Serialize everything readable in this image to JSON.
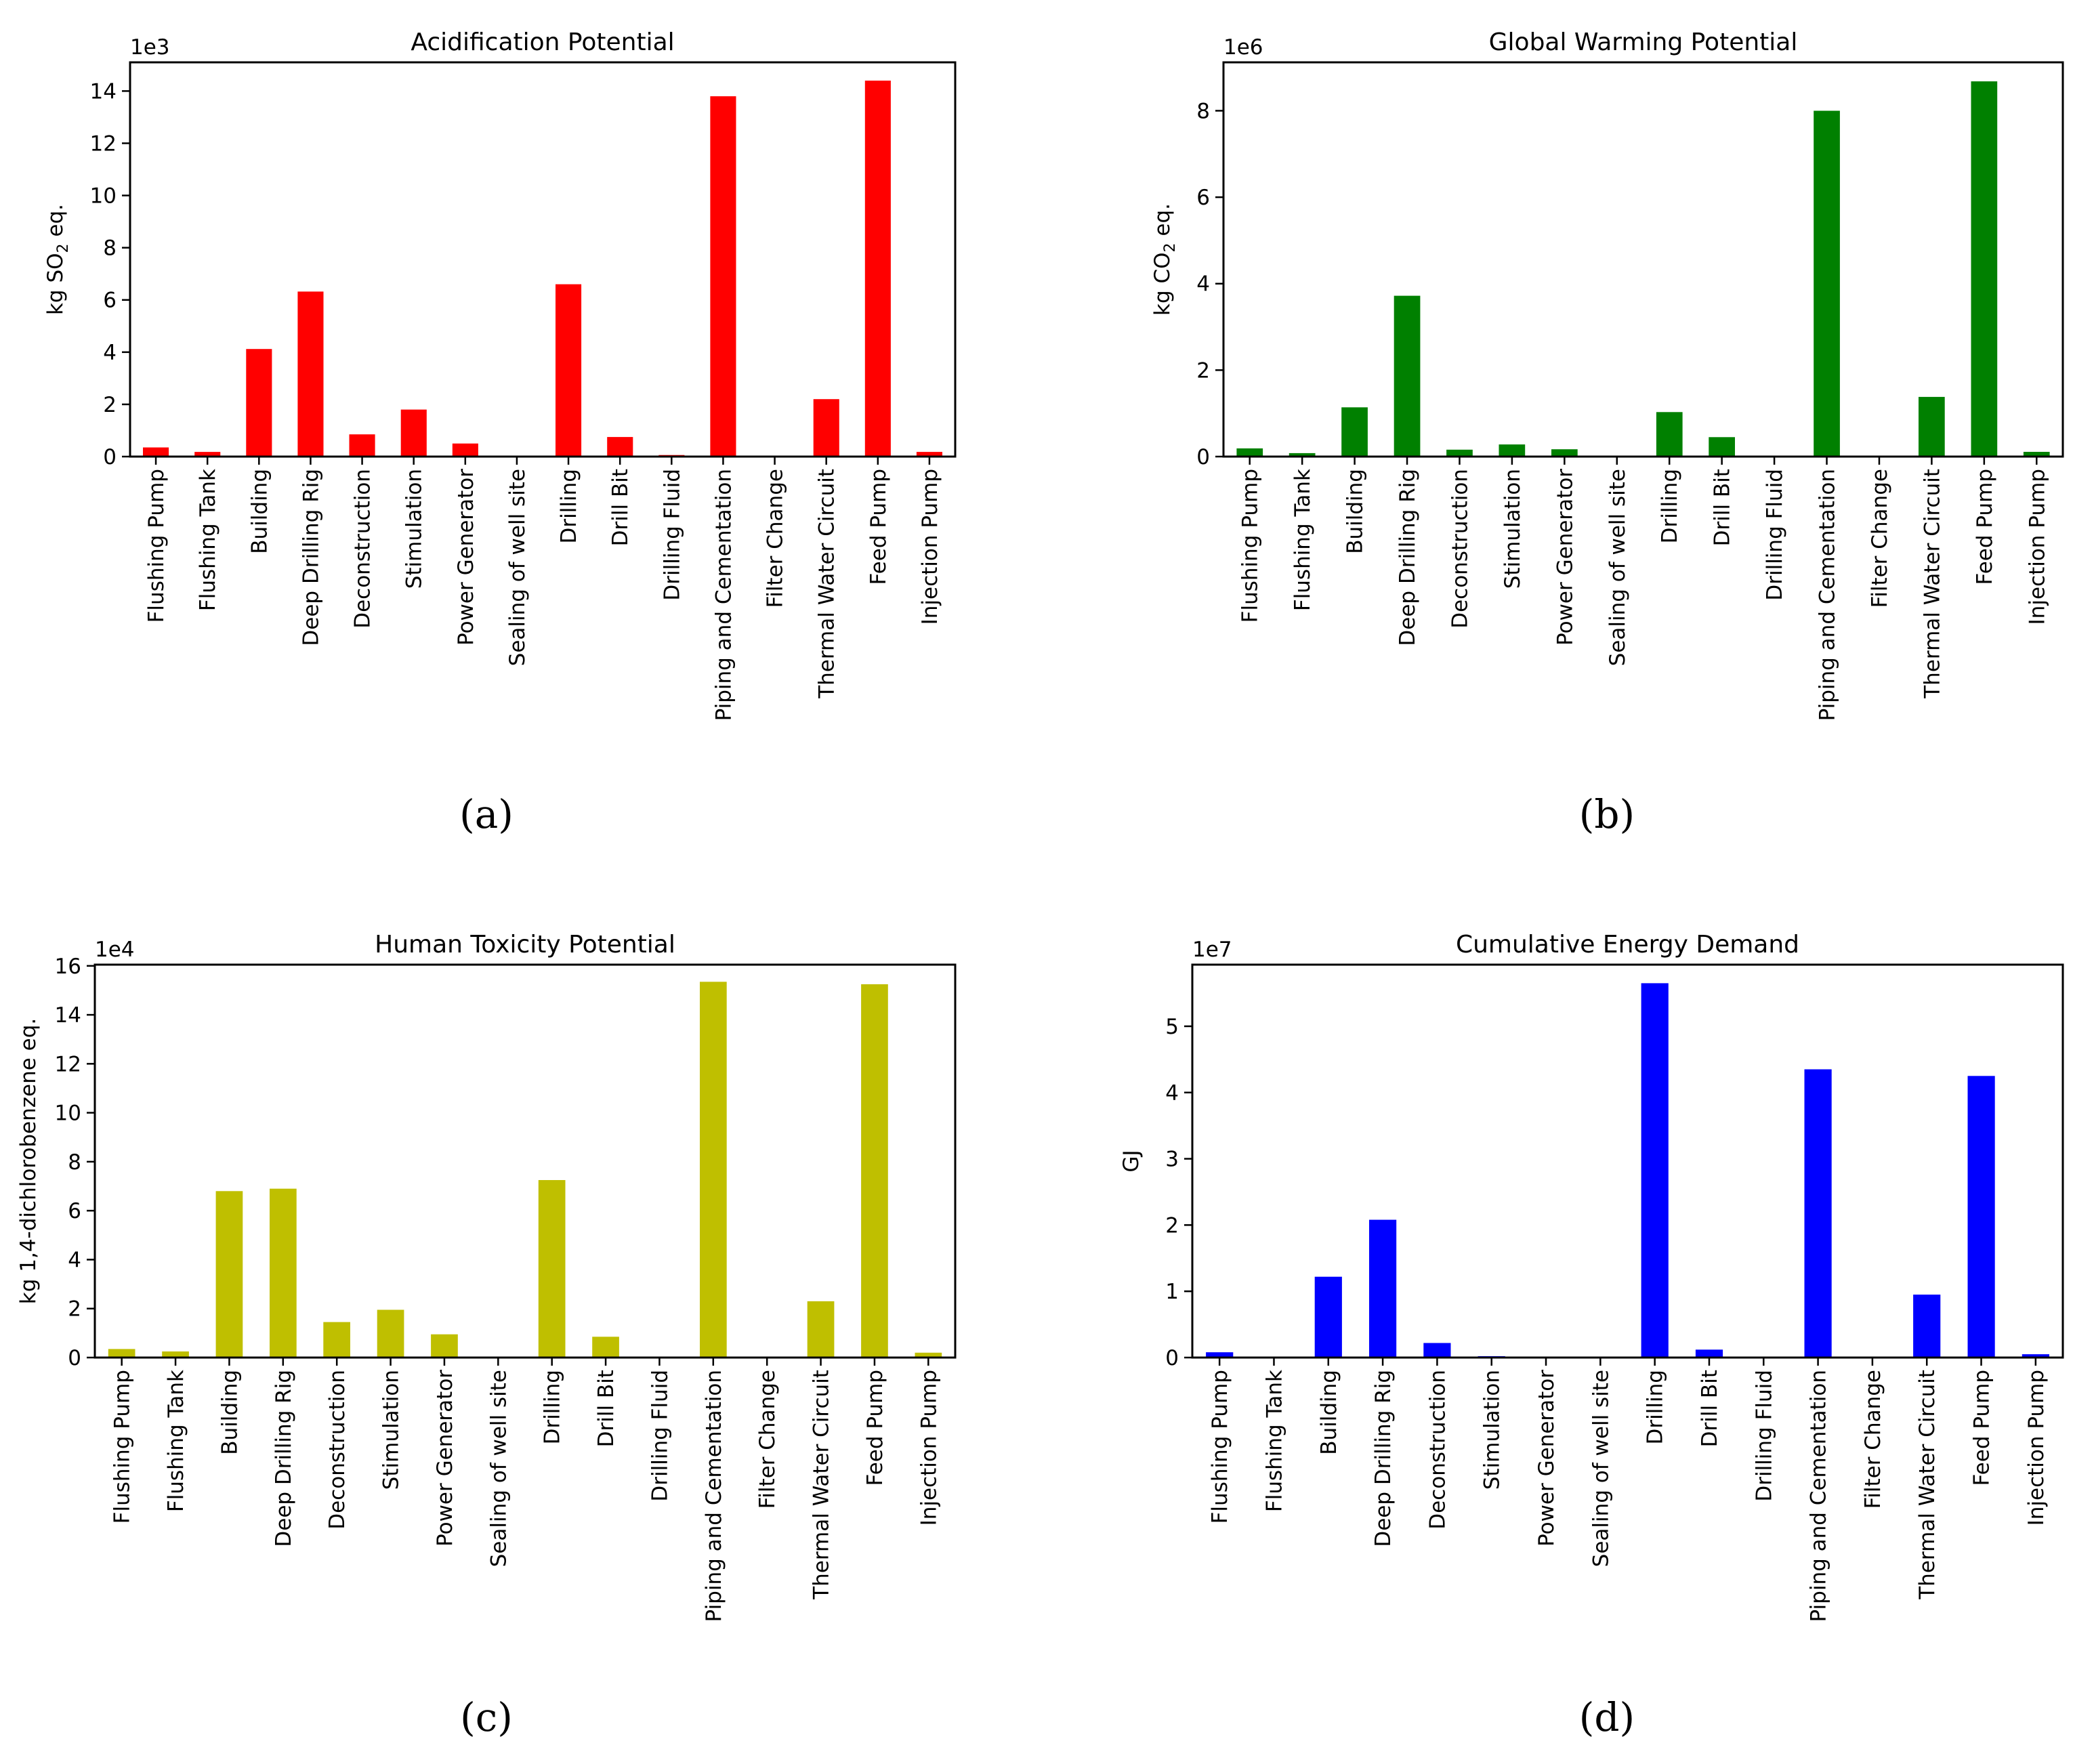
{
  "categories": [
    "Flushing Pump",
    "Flushing Tank",
    "Building",
    "Deep Drilling Rig",
    "Deconstruction",
    "Stimulation",
    "Power Generator",
    "Sealing of well site",
    "Drilling",
    "Drill Bit",
    "Drilling Fluid",
    "Piping and Cementation",
    "Filter Change",
    "Thermal Water Circuit",
    "Feed Pump",
    "Injection Pump"
  ],
  "chart_data": [
    {
      "type": "bar",
      "panel_label": "(a)",
      "title": "Acidification Potential",
      "ylabel_parts": [
        "kg SO",
        "2",
        " eq."
      ],
      "multiplier": "1e3",
      "color": "#ff0000",
      "ylim": [
        0,
        15.1
      ],
      "yticks": [
        0,
        2,
        4,
        6,
        8,
        10,
        12,
        14
      ],
      "ytick_labels": [
        "0",
        "2",
        "4",
        "6",
        "8",
        "10",
        "12",
        "14"
      ],
      "values": [
        0.35,
        0.18,
        4.12,
        6.32,
        0.85,
        1.8,
        0.5,
        0.02,
        6.6,
        0.75,
        0.06,
        13.8,
        0.03,
        2.2,
        14.4,
        0.18
      ]
    },
    {
      "type": "bar",
      "panel_label": "(b)",
      "title": "Global Warming Potential",
      "ylabel_parts": [
        "kg CO",
        "2",
        " eq."
      ],
      "multiplier": "1e6",
      "color": "#008000",
      "ylim": [
        0,
        9.12
      ],
      "yticks": [
        0,
        2,
        4,
        6,
        8
      ],
      "ytick_labels": [
        "0",
        "2",
        "4",
        "6",
        "8"
      ],
      "values": [
        0.19,
        0.08,
        1.14,
        3.72,
        0.16,
        0.28,
        0.17,
        0.01,
        1.03,
        0.45,
        0.01,
        8.0,
        0.01,
        1.38,
        8.68,
        0.11
      ]
    },
    {
      "type": "bar",
      "panel_label": "(c)",
      "title": "Human Toxicity Potential",
      "ylabel_parts": [
        "kg 1,4-dichlorobenzene eq."
      ],
      "multiplier": "1e4",
      "color": "#bfbf00",
      "ylim": [
        0,
        16.05
      ],
      "yticks": [
        0,
        2,
        4,
        6,
        8,
        10,
        12,
        14,
        16
      ],
      "ytick_labels": [
        "0",
        "2",
        "4",
        "6",
        "8",
        "10",
        "12",
        "14",
        "16"
      ],
      "values": [
        0.35,
        0.25,
        6.8,
        6.9,
        1.45,
        1.95,
        0.95,
        0.02,
        7.25,
        0.85,
        0.02,
        15.35,
        0.02,
        2.3,
        15.25,
        0.2
      ]
    },
    {
      "type": "bar",
      "panel_label": "(d)",
      "title": "Cumulative Energy Demand",
      "ylabel_parts": [
        "GJ"
      ],
      "multiplier": "1e7",
      "color": "#0000ff",
      "ylim": [
        0,
        5.93
      ],
      "yticks": [
        0,
        1,
        2,
        3,
        4,
        5
      ],
      "ytick_labels": [
        "0",
        "1",
        "2",
        "3",
        "4",
        "5"
      ],
      "values": [
        0.08,
        0.01,
        1.22,
        2.08,
        0.22,
        0.02,
        0.01,
        0.01,
        5.65,
        0.12,
        0.01,
        4.35,
        0.01,
        0.95,
        4.25,
        0.05
      ]
    }
  ]
}
